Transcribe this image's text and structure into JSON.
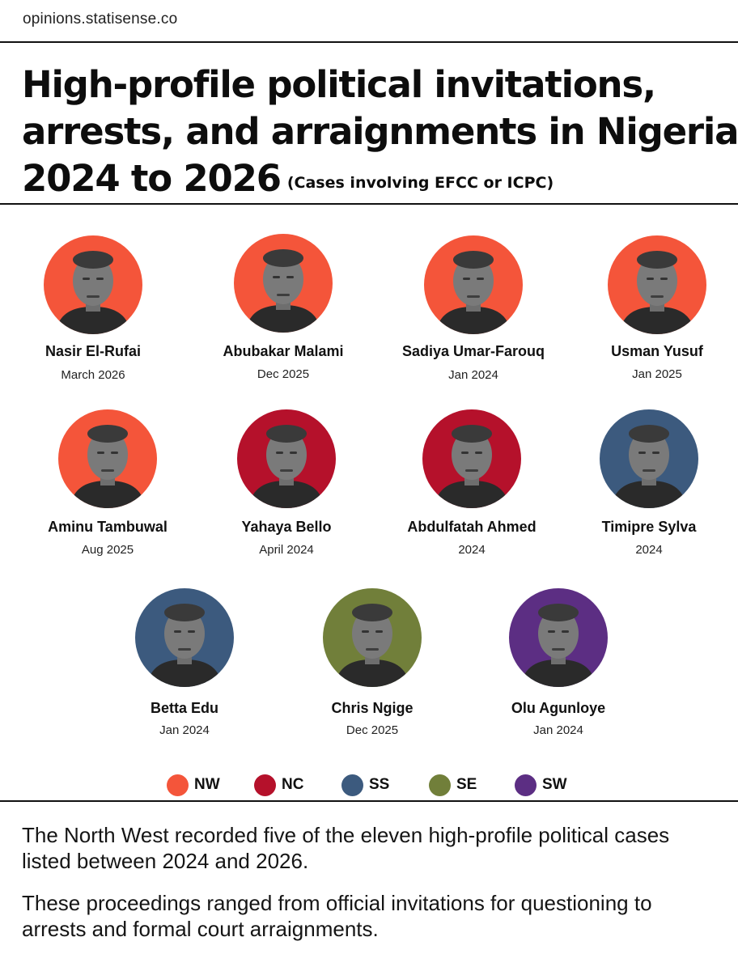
{
  "site": "opinions.statisense.co",
  "title": {
    "line1": "High-profile political invitations,",
    "line2": "arrests, and arraignments in Nigeria",
    "line3": "2024 to 2026",
    "subtitle": "(Cases involving EFCC or ICPC)"
  },
  "region_colors": {
    "NW": "#f4553a",
    "NC": "#b5112b",
    "SS": "#3c5a7e",
    "SE": "#717f3a",
    "SW": "#5c2e83"
  },
  "people": [
    {
      "name": "Nasir El-Rufai",
      "date": "March 2026",
      "region": "NW"
    },
    {
      "name": "Abubakar Malami",
      "date": "Dec 2025",
      "region": "NW"
    },
    {
      "name": "Sadiya Umar-Farouq",
      "date": "Jan 2024",
      "region": "NW"
    },
    {
      "name": "Usman Yusuf",
      "date": "Jan 2025",
      "region": "NW"
    },
    {
      "name": "Aminu Tambuwal",
      "date": "Aug 2025",
      "region": "NW"
    },
    {
      "name": "Yahaya Bello",
      "date": "April 2024",
      "region": "NC"
    },
    {
      "name": "Abdulfatah Ahmed",
      "date": "2024",
      "region": "NC"
    },
    {
      "name": "Timipre Sylva",
      "date": "2024",
      "region": "SS"
    },
    {
      "name": "Betta Edu",
      "date": "Jan 2024",
      "region": "SS"
    },
    {
      "name": "Chris Ngige",
      "date": "Dec 2025",
      "region": "SE"
    },
    {
      "name": "Olu Agunloye",
      "date": "Jan 2024",
      "region": "SW"
    }
  ],
  "legend": [
    {
      "label": "NW",
      "color": "#f4553a"
    },
    {
      "label": "NC",
      "color": "#b5112b"
    },
    {
      "label": "SS",
      "color": "#3c5a7e"
    },
    {
      "label": "SE",
      "color": "#717f3a"
    },
    {
      "label": "SW",
      "color": "#5c2e83"
    }
  ],
  "paragraphs": [
    "The North West recorded five of the eleven high-profile political cases listed between 2024 and 2026.",
    "These proceedings ranged from official invitations for questioning to arrests and formal court arraignments."
  ]
}
